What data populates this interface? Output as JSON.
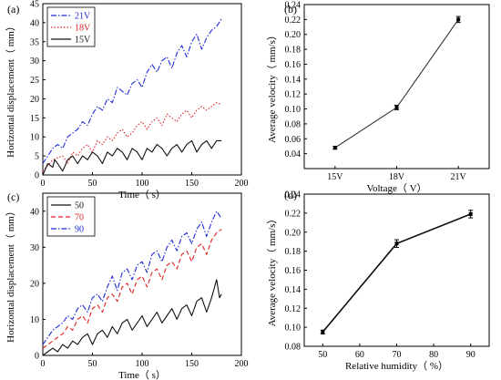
{
  "chart_data": [
    {
      "panel_label": "(a)",
      "type": "line",
      "xlabel": "Time（ s）",
      "ylabel": "Horizontal displacement（ mm）",
      "xlim": [
        0,
        200
      ],
      "ylim": [
        0,
        45
      ],
      "xticks": [
        0,
        50,
        100,
        150,
        200
      ],
      "yticks": [
        0,
        5,
        10,
        15,
        20,
        25,
        30,
        35,
        40,
        45
      ],
      "legend": {
        "position": "top-left"
      },
      "series": [
        {
          "name": "21V",
          "color": "#1f2bd6",
          "dash": "dashdot",
          "x": [
            0,
            10,
            15,
            20,
            25,
            30,
            35,
            40,
            45,
            50,
            55,
            60,
            65,
            70,
            75,
            80,
            85,
            90,
            95,
            100,
            105,
            110,
            115,
            120,
            125,
            130,
            135,
            140,
            145,
            150,
            155,
            160,
            165,
            170,
            175,
            180
          ],
          "y": [
            3,
            7,
            8,
            7,
            10,
            11,
            12,
            14,
            13,
            16,
            18,
            17,
            20,
            19,
            23,
            22,
            21,
            24,
            25,
            23,
            27,
            29,
            27,
            30,
            31,
            28,
            32,
            34,
            31,
            35,
            37,
            33,
            36,
            38,
            39,
            41
          ]
        },
        {
          "name": "18V",
          "color": "#e02020",
          "dash": "dotted",
          "x": [
            0,
            10,
            20,
            25,
            30,
            35,
            40,
            45,
            50,
            55,
            60,
            65,
            70,
            75,
            80,
            85,
            90,
            95,
            100,
            105,
            110,
            115,
            120,
            125,
            130,
            135,
            140,
            145,
            150,
            155,
            160,
            165,
            170,
            175,
            180
          ],
          "y": [
            1,
            4,
            5,
            3,
            6,
            5,
            7,
            8,
            6,
            9,
            8,
            10,
            9,
            11,
            12,
            10,
            11,
            13,
            14,
            12,
            14,
            15,
            13,
            16,
            15,
            14,
            16,
            17,
            15,
            17,
            18,
            17,
            18,
            19,
            18.5
          ]
        },
        {
          "name": "15V",
          "color": "#111111",
          "dash": "solid",
          "x": [
            0,
            5,
            10,
            12,
            15,
            20,
            25,
            30,
            35,
            40,
            45,
            50,
            55,
            60,
            65,
            70,
            75,
            80,
            85,
            90,
            95,
            100,
            105,
            110,
            115,
            120,
            125,
            130,
            135,
            140,
            145,
            150,
            155,
            160,
            165,
            170,
            175,
            180
          ],
          "y": [
            0,
            3,
            2,
            4,
            3,
            1,
            4,
            5,
            3,
            5,
            4,
            6,
            5,
            3,
            6,
            5,
            7,
            6,
            4,
            7,
            6,
            4,
            7,
            6,
            8,
            7,
            5,
            7,
            8,
            6,
            8,
            9,
            6,
            8,
            9,
            7,
            9,
            9
          ]
        }
      ]
    },
    {
      "panel_label": "(b)",
      "type": "line",
      "xlabel": "Voltage（ V）",
      "ylabel": "Average velocity（ mm/s）",
      "categories": [
        "15V",
        "18V",
        "21V"
      ],
      "ylim": [
        0.02,
        0.24
      ],
      "yticks": [
        0.04,
        0.06,
        0.08,
        0.1,
        0.12,
        0.14,
        0.16,
        0.18,
        0.2,
        0.22,
        0.24
      ],
      "ytick_labels": [
        "0.04",
        "0.06",
        "0.08",
        "0.10",
        "0.12",
        "0.14",
        "0.16",
        "0.18",
        "0.20",
        "0.22",
        "0.24"
      ],
      "series": [
        {
          "color": "#333333",
          "values": [
            0.048,
            0.102,
            0.22
          ],
          "errors": [
            0.002,
            0.003,
            0.004
          ]
        }
      ]
    },
    {
      "panel_label": "(c)",
      "type": "line",
      "xlabel": "Time（ s）",
      "ylabel": "Horizontal displacement（ mm）",
      "xlim": [
        0,
        200
      ],
      "ylim": [
        0,
        45
      ],
      "xticks": [
        0,
        50,
        100,
        150,
        200
      ],
      "yticks": [
        0,
        10,
        20,
        30,
        40
      ],
      "legend": {
        "position": "top-left"
      },
      "series": [
        {
          "name": "50",
          "color": "#111111",
          "dash": "solid",
          "x": [
            0,
            5,
            10,
            15,
            20,
            25,
            30,
            35,
            40,
            45,
            50,
            55,
            60,
            65,
            70,
            75,
            80,
            85,
            90,
            95,
            100,
            105,
            110,
            115,
            120,
            125,
            130,
            135,
            140,
            145,
            150,
            155,
            160,
            165,
            170,
            175,
            178,
            180
          ],
          "y": [
            0,
            1,
            2,
            1,
            3,
            2,
            4,
            3,
            5,
            6,
            3,
            6,
            7,
            5,
            8,
            6,
            9,
            10,
            7,
            9,
            11,
            8,
            10,
            12,
            9,
            11,
            13,
            10,
            13,
            14,
            11,
            15,
            16,
            12,
            16,
            21,
            16,
            17
          ]
        },
        {
          "name": "70",
          "color": "#e02020",
          "dash": "dashed",
          "x": [
            0,
            10,
            15,
            20,
            25,
            30,
            35,
            40,
            45,
            50,
            55,
            60,
            65,
            70,
            75,
            80,
            85,
            90,
            95,
            100,
            105,
            110,
            115,
            120,
            125,
            130,
            135,
            140,
            145,
            150,
            155,
            160,
            165,
            170,
            175,
            180
          ],
          "y": [
            2,
            4,
            5,
            6,
            8,
            7,
            10,
            11,
            9,
            13,
            14,
            12,
            16,
            17,
            15,
            19,
            20,
            17,
            21,
            22,
            19,
            23,
            24,
            21,
            25,
            26,
            24,
            28,
            29,
            26,
            30,
            31,
            28,
            32,
            34,
            35
          ]
        },
        {
          "name": "90",
          "color": "#1f2bd6",
          "dash": "dashdot",
          "x": [
            0,
            10,
            15,
            20,
            25,
            30,
            35,
            40,
            45,
            50,
            55,
            60,
            65,
            70,
            75,
            80,
            85,
            90,
            95,
            100,
            105,
            110,
            115,
            120,
            125,
            130,
            135,
            140,
            145,
            150,
            155,
            160,
            165,
            170,
            175,
            180
          ],
          "y": [
            3,
            7,
            8,
            9,
            11,
            10,
            13,
            14,
            12,
            16,
            17,
            15,
            19,
            22,
            18,
            23,
            24,
            21,
            25,
            26,
            23,
            28,
            29,
            26,
            30,
            32,
            29,
            33,
            34,
            31,
            35,
            37,
            33,
            37,
            40,
            38
          ]
        }
      ]
    },
    {
      "panel_label": "(d)",
      "type": "line",
      "xlabel": "Relative humidity（ %）",
      "ylabel": "Average velocity（ mm/s）",
      "xlim": [
        45,
        95
      ],
      "xticks": [
        50,
        60,
        70,
        80,
        90
      ],
      "ylim": [
        0.08,
        0.24
      ],
      "yticks": [
        0.08,
        0.1,
        0.12,
        0.14,
        0.16,
        0.18,
        0.2,
        0.22,
        0.24
      ],
      "ytick_labels": [
        "0.08",
        "0.10",
        "0.12",
        "0.14",
        "0.16",
        "0.18",
        "0.20",
        "0.22",
        "0.24"
      ],
      "series": [
        {
          "color": "#111111",
          "x": [
            50,
            70,
            90
          ],
          "values": [
            0.095,
            0.188,
            0.219
          ],
          "errors": [
            0.002,
            0.004,
            0.004
          ]
        }
      ]
    }
  ]
}
